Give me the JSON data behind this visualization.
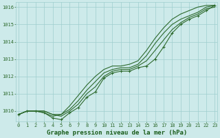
{
  "hours": [
    0,
    1,
    2,
    3,
    4,
    5,
    6,
    7,
    8,
    9,
    10,
    11,
    12,
    13,
    14,
    15,
    16,
    17,
    18,
    19,
    20,
    21,
    22,
    23
  ],
  "series_main": [
    1009.8,
    1010.0,
    1010.0,
    1009.9,
    1009.6,
    1009.5,
    1009.9,
    1010.2,
    1010.8,
    1011.1,
    1011.9,
    1012.2,
    1012.3,
    1012.3,
    1012.5,
    1012.6,
    1013.0,
    1013.7,
    1014.5,
    1015.0,
    1015.3,
    1015.5,
    1015.8,
    1016.1
  ],
  "series_upper": [
    1009.8,
    1010.0,
    1010.0,
    1009.9,
    1009.7,
    1009.8,
    1010.3,
    1010.9,
    1011.5,
    1012.0,
    1012.4,
    1012.6,
    1012.6,
    1012.7,
    1012.9,
    1013.5,
    1014.2,
    1014.8,
    1015.3,
    1015.6,
    1015.8,
    1016.0,
    1016.1,
    1016.1
  ],
  "series_smooth1": [
    1009.8,
    1010.0,
    1010.0,
    1010.0,
    1009.8,
    1009.7,
    1010.0,
    1010.4,
    1011.0,
    1011.4,
    1012.0,
    1012.3,
    1012.4,
    1012.4,
    1012.6,
    1012.9,
    1013.5,
    1014.1,
    1014.7,
    1015.1,
    1015.4,
    1015.6,
    1015.9,
    1016.0
  ],
  "series_smooth2": [
    1009.8,
    1010.0,
    1010.0,
    1010.0,
    1009.8,
    1009.8,
    1010.1,
    1010.6,
    1011.2,
    1011.7,
    1012.2,
    1012.4,
    1012.5,
    1012.5,
    1012.7,
    1013.2,
    1013.9,
    1014.5,
    1015.0,
    1015.3,
    1015.5,
    1015.7,
    1016.0,
    1016.1
  ],
  "ylim_min": 1009.4,
  "ylim_max": 1016.3,
  "yticks": [
    1010,
    1011,
    1012,
    1013,
    1014,
    1015,
    1016
  ],
  "xticks": [
    0,
    1,
    2,
    3,
    4,
    5,
    6,
    7,
    8,
    9,
    10,
    11,
    12,
    13,
    14,
    15,
    16,
    17,
    18,
    19,
    20,
    21,
    22,
    23
  ],
  "line_color": "#2d6a2d",
  "bg_color": "#cdeaea",
  "grid_color": "#9ecece",
  "title": "Graphe pression niveau de la mer (hPa)",
  "title_color": "#1a5c1a",
  "tick_color": "#2d6a2d"
}
